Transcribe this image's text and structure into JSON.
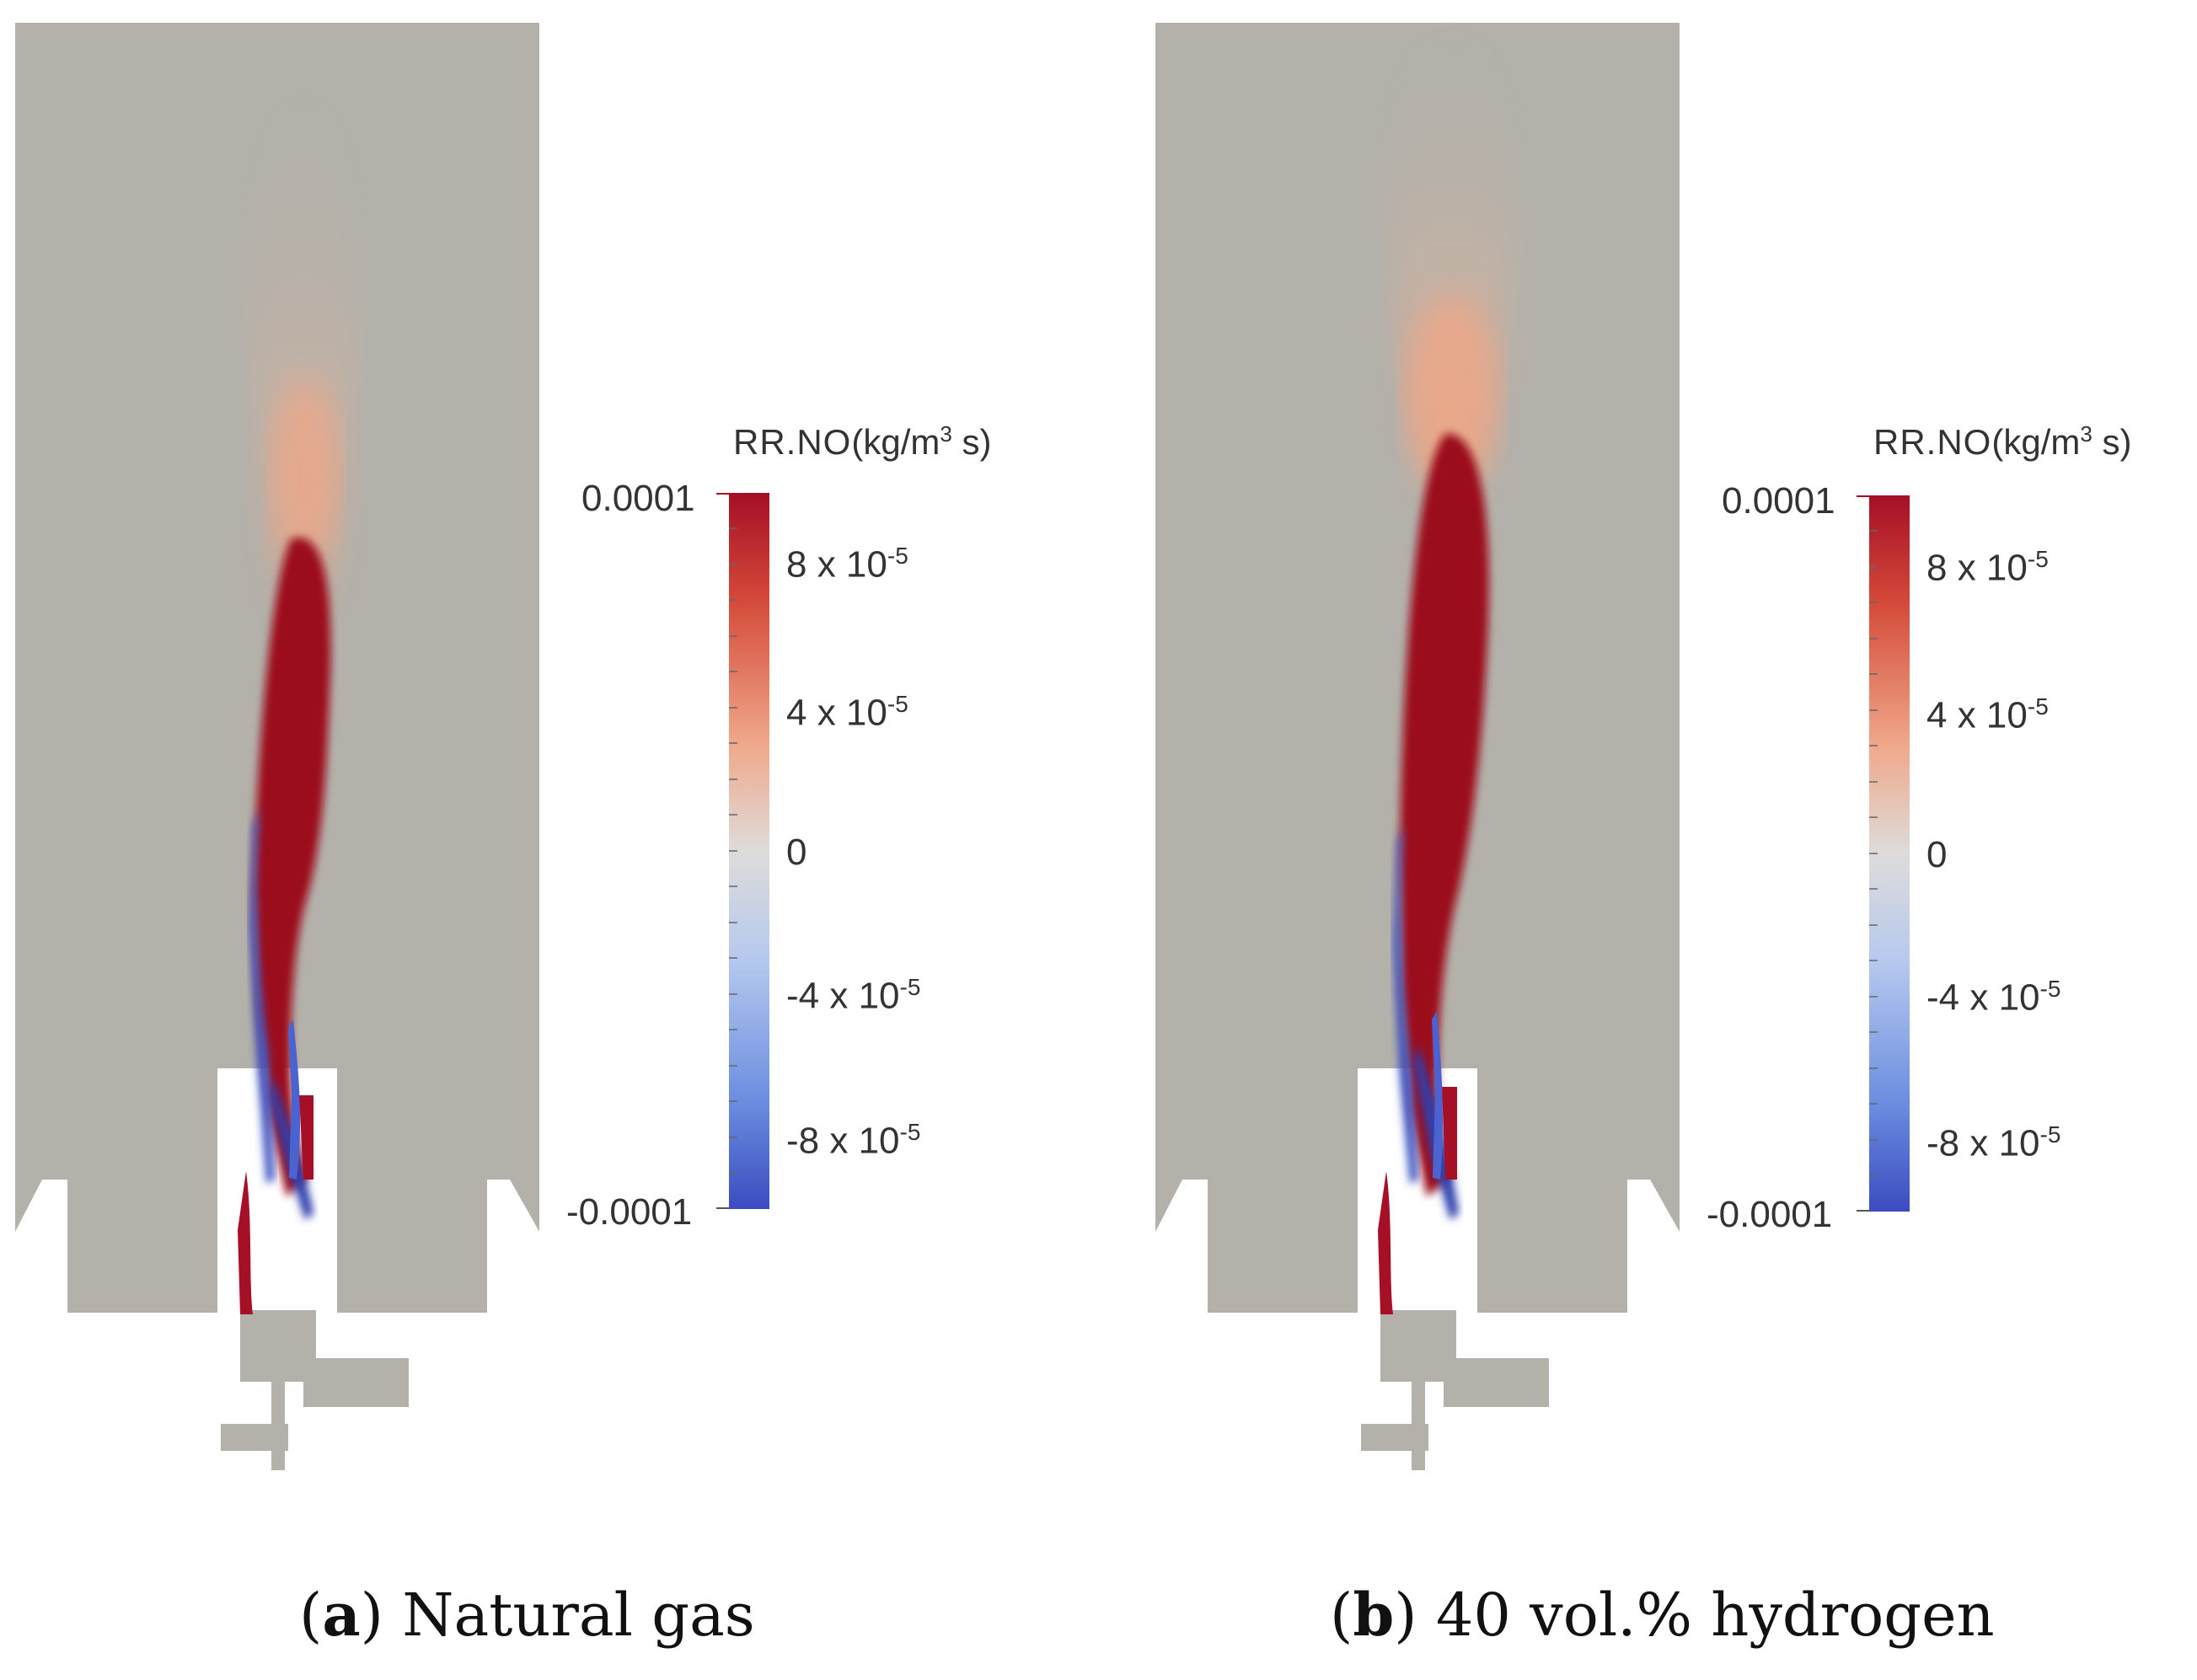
{
  "colorbar": {
    "variable": "RR.NO",
    "units_prefix": "(kg/m",
    "units_exp": "3",
    "units_suffix": " s)",
    "range": [
      -0.0001,
      0.0001
    ],
    "colors": {
      "max": "#b40426",
      "mid": "#dddddd",
      "min": "#3b4cc0"
    },
    "tick_labels": [
      {
        "value": 0.0001,
        "text": "0.0001",
        "exp": ""
      },
      {
        "value": 8e-05,
        "text": "8 x 10",
        "exp": "-5"
      },
      {
        "value": 4e-05,
        "text": "4 x 10",
        "exp": "-5"
      },
      {
        "value": 0,
        "text": "0",
        "exp": ""
      },
      {
        "value": -4e-05,
        "text": "-4 x 10",
        "exp": "-5"
      },
      {
        "value": -8e-05,
        "text": "-8 x 10",
        "exp": "-5"
      },
      {
        "value": -0.0001,
        "text": "-0.0001",
        "exp": ""
      }
    ]
  },
  "background_color": "#b3b1aa",
  "panels": [
    {
      "label": "a",
      "caption": " Natural gas"
    },
    {
      "label": "b",
      "caption": " 40 vol.% hydrogen"
    }
  ]
}
